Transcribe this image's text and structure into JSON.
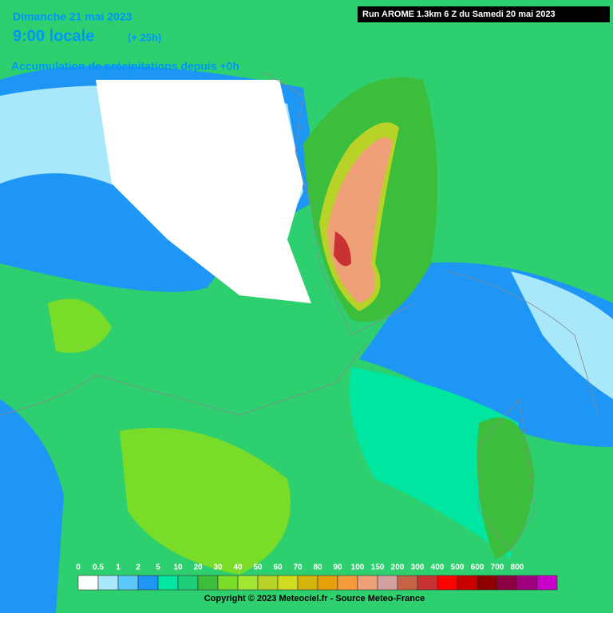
{
  "header": {
    "date": "Dimanche 21 mai 2023",
    "time": "9:00 locale",
    "lead": "(+ 25h)",
    "subtitle": "Accumulation de précipitations depuis +0h",
    "run": "Run AROME 1.3km 6 Z du Samedi 20 mai 2023"
  },
  "legend": {
    "labels": [
      0,
      0.5,
      1,
      2,
      5,
      10,
      20,
      30,
      40,
      50,
      60,
      70,
      80,
      90,
      100,
      150,
      200,
      300,
      400,
      500,
      600,
      700,
      800
    ],
    "colors": [
      "#ffffff",
      "#a8e8fa",
      "#5ac8fa",
      "#1e96f5",
      "#00e6a0",
      "#1ecd78",
      "#3cbe3c",
      "#78dc28",
      "#a0e632",
      "#b9d228",
      "#d2dc1e",
      "#d2b40a",
      "#e6a00a",
      "#f59b3c",
      "#f0a078",
      "#d2a0a0",
      "#c86446",
      "#c83232",
      "#ff0000",
      "#c80000",
      "#8c0000",
      "#8c0046",
      "#a0007d",
      "#c800c8"
    ]
  },
  "footer": {
    "copyright": "Copyright © 2023 Meteociel.fr - Source Meteo-France"
  }
}
